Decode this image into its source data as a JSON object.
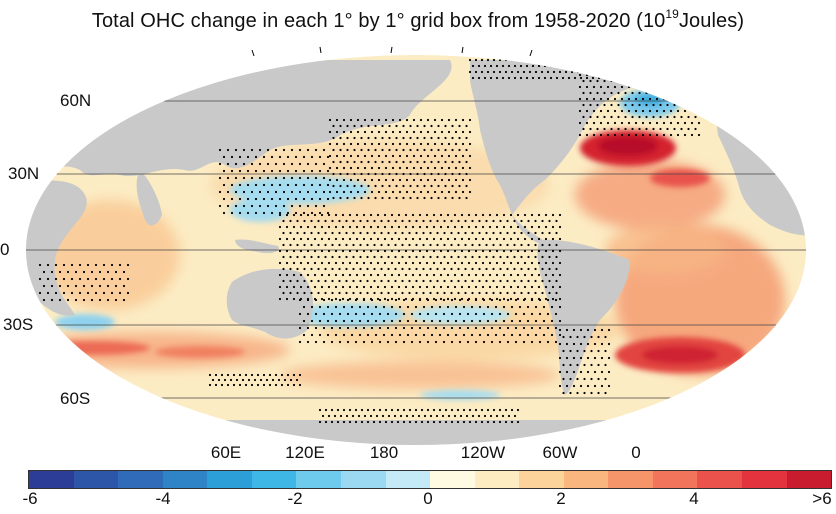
{
  "title": {
    "main": "Total OHC change in each 1° by 1° grid box from 1958-2020 (10",
    "sup": "19",
    "unit": "Joules)"
  },
  "latitude_labels": [
    "60N",
    "30N",
    "0",
    "30S",
    "60S"
  ],
  "longitude_labels": [
    "60E",
    "120E",
    "180",
    "120W",
    "60W",
    "0"
  ],
  "colorbar": {
    "tick_labels": [
      "-6",
      "-4",
      "-2",
      "0",
      "2",
      "4",
      ">6"
    ],
    "colors": [
      "#2b3d96",
      "#2d55a8",
      "#2f6bb8",
      "#2f84c8",
      "#2c9fd9",
      "#3eb7e6",
      "#6fcbee",
      "#9ad9f1",
      "#c3eaf6",
      "#fffbe2",
      "#fdebc1",
      "#fcd49b",
      "#f9b67e",
      "#f6956a",
      "#f2745a",
      "#ec524c",
      "#e2333f",
      "#c91c2f"
    ]
  },
  "palette": {
    "land": "#c9c9c9",
    "ocean_base": "#fcecc4",
    "gridline": "#444444",
    "stipple": "#000000"
  }
}
